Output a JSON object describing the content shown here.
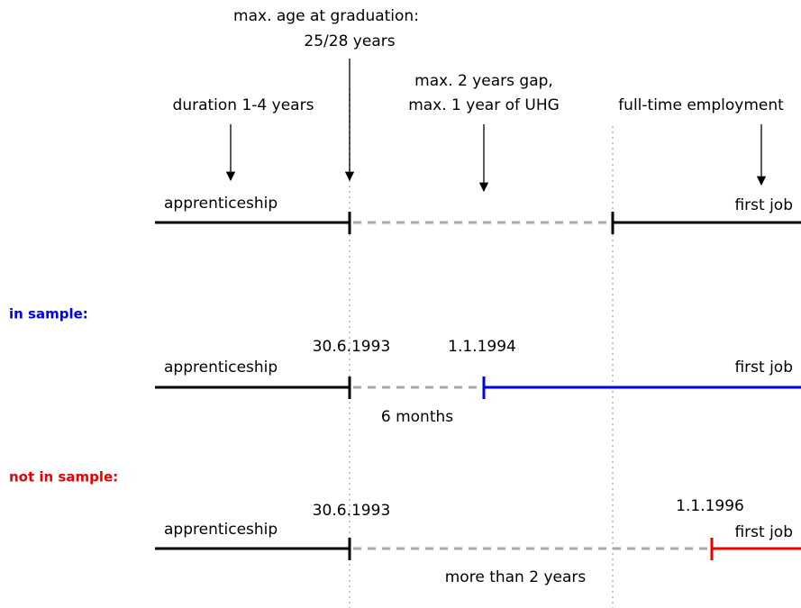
{
  "annotations": {
    "graduation": [
      "max. age at graduation:",
      "25/28 years"
    ],
    "gap": [
      "max. 2 years gap,",
      "max. 1 year of UHG"
    ],
    "duration": "duration 1-4 years",
    "employment": "full-time employment"
  },
  "rows": [
    {
      "start_label": "apprenticeship",
      "end_label": "first job"
    },
    {
      "heading": "in sample:",
      "start_label": "apprenticeship",
      "end_label": "first job",
      "graduation_date": "30.6.1993",
      "job_date": "1.1.1994",
      "gap_label": "6 months"
    },
    {
      "heading": "not in sample:",
      "start_label": "apprenticeship",
      "end_label": "first job",
      "graduation_date": "30.6.1993",
      "job_date": "1.1.1996",
      "gap_label": "more than 2 years"
    }
  ]
}
